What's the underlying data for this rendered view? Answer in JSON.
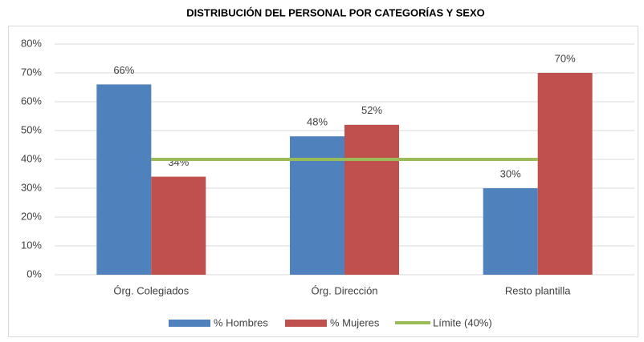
{
  "chart_data": {
    "type": "bar",
    "title": "DISTRIBUCIÓN DEL PERSONAL POR CATEGORÍAS Y SEXO",
    "categories": [
      "Órg. Colegiados",
      "Órg. Dirección",
      "Resto plantilla"
    ],
    "series": [
      {
        "name": "% Hombres",
        "color": "#4f81bd",
        "values": [
          66,
          48,
          30
        ],
        "value_labels": [
          "66%",
          "48%",
          "30%"
        ]
      },
      {
        "name": "% Mujeres",
        "color": "#c0504d",
        "values": [
          34,
          52,
          70
        ],
        "value_labels": [
          "34%",
          "52%",
          "70%"
        ]
      },
      {
        "name": "Límite (40%)",
        "color": "#9bbb59",
        "type": "line",
        "values": [
          40,
          40,
          40
        ]
      }
    ],
    "ylim": [
      0,
      80
    ],
    "yticks": [
      {
        "value": 0,
        "label": "0%"
      },
      {
        "value": 10,
        "label": "10%"
      },
      {
        "value": 20,
        "label": "20%"
      },
      {
        "value": 30,
        "label": "30%"
      },
      {
        "value": 40,
        "label": "40%"
      },
      {
        "value": 50,
        "label": "50%"
      },
      {
        "value": 60,
        "label": "60%"
      },
      {
        "value": 70,
        "label": "70%"
      },
      {
        "value": 80,
        "label": "80%"
      }
    ],
    "grid": true,
    "legend": "bottom"
  }
}
